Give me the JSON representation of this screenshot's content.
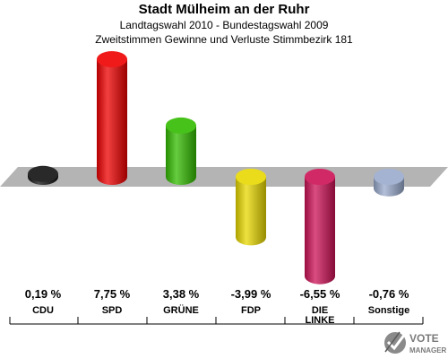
{
  "chart_data": {
    "type": "bar",
    "title": "Stadt Mülheim an der Ruhr",
    "subtitle1": "Landtagswahl 2010 - Bundestagswahl 2009",
    "subtitle2": "Zweitstimmen Gewinne und Verluste Stimmbezirk 181",
    "categories": [
      "CDU",
      "SPD",
      "GRÜNE",
      "FDP",
      "DIE LINKE",
      "Sonstige"
    ],
    "category_lines": [
      [
        "CDU"
      ],
      [
        "SPD"
      ],
      [
        "GRÜNE"
      ],
      [
        "FDP"
      ],
      [
        "DIE",
        "LINKE"
      ],
      [
        "Sonstige"
      ]
    ],
    "values": [
      0.19,
      7.75,
      3.38,
      -3.99,
      -6.55,
      -0.76
    ],
    "value_labels": [
      "0,19 %",
      "7,75 %",
      "3,38 %",
      "-3,99 %",
      "-6,55 %",
      "-0,76 %"
    ],
    "colors": [
      "#111111",
      "#ee0000",
      "#33bb00",
      "#e8d800",
      "#cc1155",
      "#99aacc"
    ],
    "grid": false,
    "legend": "none"
  },
  "logo": {
    "word1": "VOTE",
    "word2": "MANAGER",
    "icon": "checkmark-ballot-icon",
    "color": "#7a7a7a"
  }
}
